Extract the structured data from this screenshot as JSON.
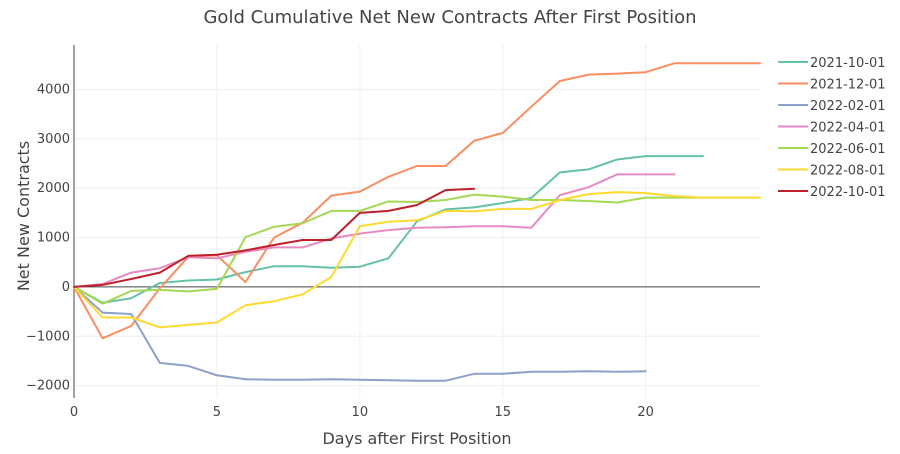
{
  "chart_data": {
    "type": "line",
    "title": "Gold Cumulative Net New Contracts After First Position",
    "xlabel": "Days after First Position",
    "ylabel": "Net New Contracts",
    "xlim": [
      0,
      24
    ],
    "ylim": [
      -2250,
      4900
    ],
    "xticks": [
      0,
      5,
      10,
      15,
      20
    ],
    "yticks": [
      -2000,
      -1000,
      0,
      1000,
      2000,
      3000,
      4000
    ],
    "ytick_labels": [
      "−2000",
      "−1000",
      "0",
      "1000",
      "2000",
      "3000",
      "4000"
    ],
    "grid": true,
    "legend_position": "right",
    "series": [
      {
        "name": "2021-10-01",
        "color": "#66c2a5",
        "x": [
          0,
          1,
          2,
          3,
          4,
          5,
          6,
          7,
          8,
          9,
          10,
          11,
          12,
          13,
          14,
          15,
          16,
          17,
          18,
          19,
          20,
          21,
          22
        ],
        "y": [
          0,
          -320,
          -230,
          80,
          130,
          150,
          300,
          420,
          420,
          390,
          410,
          580,
          1330,
          1570,
          1610,
          1700,
          1800,
          2320,
          2380,
          2580,
          2650,
          2650,
          2650
        ]
      },
      {
        "name": "2021-12-01",
        "color": "#fc8d62",
        "x": [
          0,
          1,
          2,
          3,
          4,
          5,
          6,
          7,
          8,
          9,
          10,
          11,
          12,
          13,
          14,
          15,
          16,
          17,
          18,
          19,
          20,
          21,
          22,
          23,
          24
        ],
        "y": [
          0,
          -1040,
          -790,
          -30,
          610,
          640,
          100,
          1000,
          1300,
          1850,
          1930,
          2230,
          2450,
          2450,
          2960,
          3120,
          3650,
          4170,
          4300,
          4320,
          4350,
          4530,
          4530,
          4530,
          4530
        ]
      },
      {
        "name": "2022-02-01",
        "color": "#8da0cb",
        "x": [
          0,
          1,
          2,
          3,
          4,
          5,
          6,
          7,
          8,
          9,
          10,
          11,
          12,
          13,
          14,
          15,
          16,
          17,
          18,
          19,
          20
        ],
        "y": [
          0,
          -520,
          -550,
          -1540,
          -1600,
          -1790,
          -1870,
          -1880,
          -1880,
          -1870,
          -1880,
          -1890,
          -1900,
          -1900,
          -1760,
          -1760,
          -1720,
          -1720,
          -1710,
          -1720,
          -1710
        ]
      },
      {
        "name": "2022-04-01",
        "color": "#e78ac3",
        "x": [
          0,
          1,
          2,
          3,
          4,
          5,
          6,
          7,
          8,
          9,
          10,
          11,
          12,
          13,
          14,
          15,
          16,
          17,
          18,
          19,
          20,
          21
        ],
        "y": [
          0,
          60,
          290,
          380,
          600,
          580,
          710,
          800,
          800,
          980,
          1080,
          1150,
          1200,
          1210,
          1230,
          1230,
          1200,
          1860,
          2020,
          2280,
          2280,
          2280
        ]
      },
      {
        "name": "2022-06-01",
        "color": "#a6d854",
        "x": [
          0,
          1,
          2,
          3,
          4,
          5,
          6,
          7,
          8,
          9,
          10,
          11,
          12,
          13,
          14,
          15,
          16,
          17,
          18,
          19,
          20,
          21,
          22,
          23,
          24
        ],
        "y": [
          0,
          -340,
          -80,
          -60,
          -90,
          -40,
          1010,
          1220,
          1290,
          1540,
          1540,
          1730,
          1720,
          1760,
          1870,
          1830,
          1760,
          1760,
          1740,
          1710,
          1810,
          1810,
          1810,
          1810,
          1810
        ]
      },
      {
        "name": "2022-08-01",
        "color": "#ffd92f",
        "x": [
          0,
          1,
          2,
          3,
          4,
          5,
          6,
          7,
          8,
          9,
          10,
          11,
          12,
          13,
          14,
          15,
          16,
          17,
          18,
          19,
          20,
          21,
          22,
          23,
          24
        ],
        "y": [
          0,
          -620,
          -620,
          -820,
          -770,
          -720,
          -370,
          -290,
          -150,
          200,
          1230,
          1320,
          1350,
          1540,
          1530,
          1580,
          1580,
          1760,
          1880,
          1920,
          1900,
          1840,
          1810,
          1810,
          1810
        ]
      },
      {
        "name": "2022-10-01",
        "color": "#c0202a",
        "x": [
          0,
          1,
          2,
          3,
          4,
          5,
          6,
          7,
          8,
          9,
          10,
          11,
          12,
          13,
          14
        ],
        "y": [
          0,
          40,
          160,
          290,
          630,
          650,
          740,
          850,
          950,
          950,
          1500,
          1540,
          1660,
          1960,
          1990
        ]
      }
    ]
  }
}
